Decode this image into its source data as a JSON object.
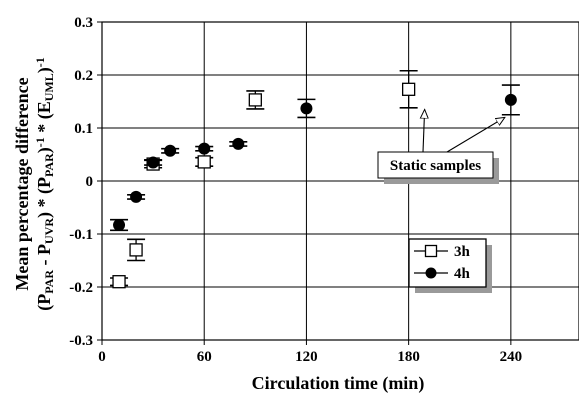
{
  "chart_data": {
    "type": "scatter",
    "title": "",
    "xlabel": "Circulation time (min)",
    "ylabel_line1": "Mean percentage difference",
    "ylabel_line2": {
      "p1": "(P",
      "s1": "PAR",
      "p2": " - P",
      "s2": "UVR",
      "p3": ") * (P",
      "s3": "PAR",
      "p4": ")",
      "sup1": "-1",
      "p5": " * (E",
      "s4": "UML",
      "p6": ")",
      "sup2": "-1"
    },
    "xlim": [
      0,
      280
    ],
    "ylim": [
      -0.3,
      0.3
    ],
    "x_ticks": [
      "0",
      "60",
      "120",
      "180",
      "240"
    ],
    "y_ticks": [
      "-0.3",
      "-0.2",
      "-0.1",
      "0",
      "0.1",
      "0.2",
      "0.3"
    ],
    "grid": true,
    "legend_position": "bottom-right",
    "series": [
      {
        "name": "3h",
        "marker": "open-square",
        "points": [
          {
            "x": 10,
            "y": -0.19,
            "err": 0.007
          },
          {
            "x": 20,
            "y": -0.13,
            "err": 0.02
          },
          {
            "x": 30,
            "y": 0.032,
            "err": 0.007
          },
          {
            "x": 60,
            "y": 0.036,
            "err": 0.008
          },
          {
            "x": 90,
            "y": 0.153,
            "err": 0.017
          },
          {
            "x": 180,
            "y": 0.173,
            "err": 0.035
          }
        ]
      },
      {
        "name": "4h",
        "marker": "filled-circle",
        "points": [
          {
            "x": 10,
            "y": -0.083,
            "err": 0.01
          },
          {
            "x": 20,
            "y": -0.03,
            "err": 0.004
          },
          {
            "x": 30,
            "y": 0.035,
            "err": 0.005
          },
          {
            "x": 40,
            "y": 0.057,
            "err": 0.004
          },
          {
            "x": 60,
            "y": 0.061,
            "err": 0.004
          },
          {
            "x": 80,
            "y": 0.07,
            "err": 0.004
          },
          {
            "x": 120,
            "y": 0.137,
            "err": 0.017
          },
          {
            "x": 240,
            "y": 0.153,
            "err": 0.028
          }
        ]
      }
    ],
    "annotations": [
      {
        "text": "Static samples",
        "arrows_to": [
          {
            "x": 180,
            "y": 0.135
          },
          {
            "x": 240,
            "y": 0.12
          }
        ]
      }
    ]
  }
}
